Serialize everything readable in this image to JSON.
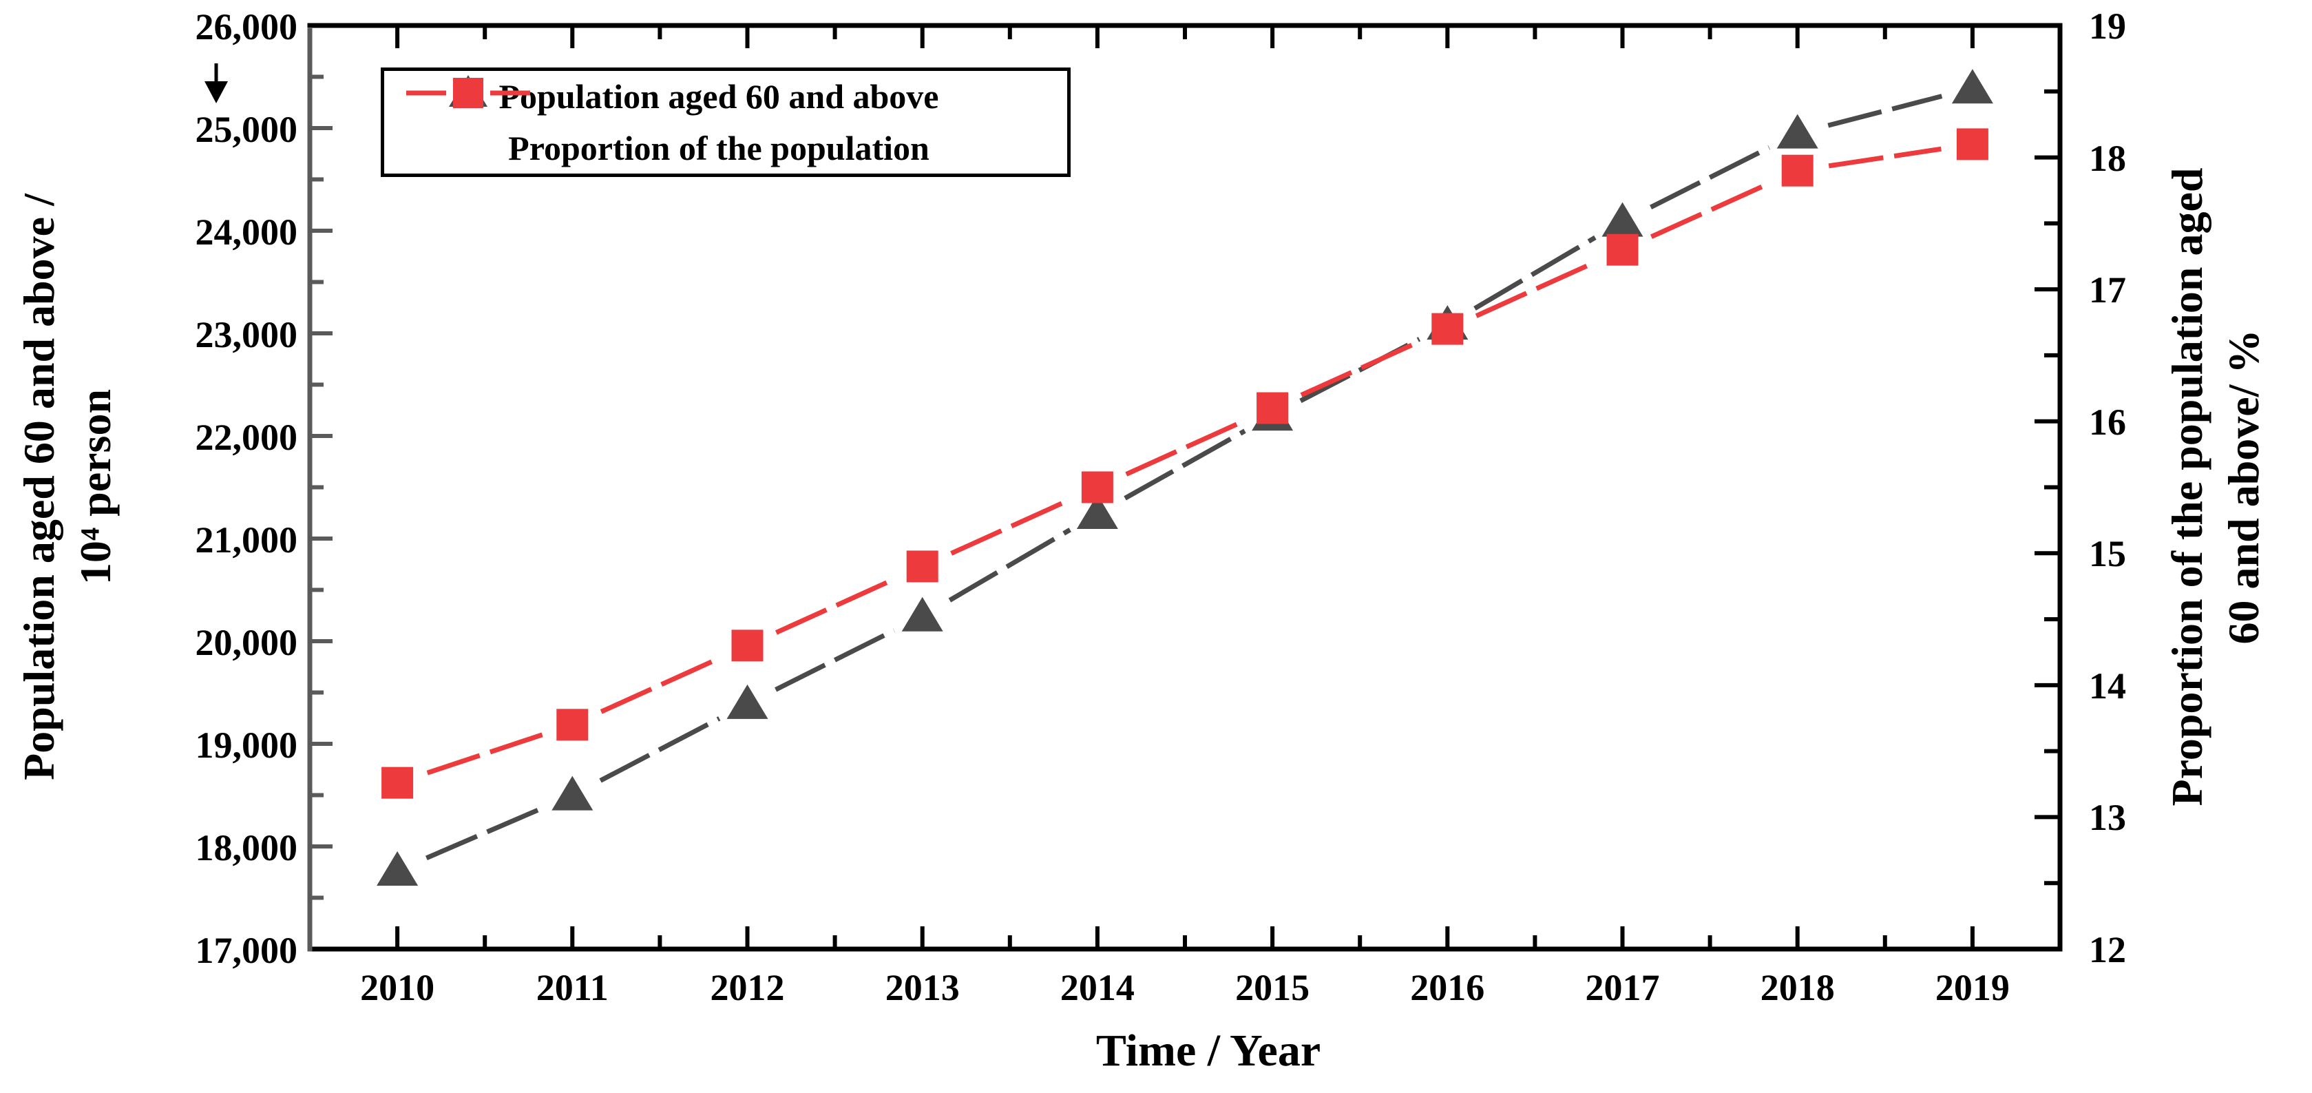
{
  "chart_data": {
    "type": "line",
    "title": "",
    "x": [
      "2010",
      "2011",
      "2012",
      "2013",
      "2014",
      "2015",
      "2016",
      "2017",
      "2018",
      "2019"
    ],
    "xlabel": "Time / Year",
    "series": [
      {
        "name": "Population aged 60 and above",
        "axis": "left",
        "marker": "triangle",
        "color": "#4a4a4a",
        "values": [
          17765,
          18499,
          19390,
          20243,
          21242,
          22200,
          23086,
          24090,
          24949,
          25388
        ]
      },
      {
        "name": "Proportion of the population",
        "axis": "right",
        "marker": "square",
        "color": "#ed3a3c",
        "values": [
          13.26,
          13.7,
          14.3,
          14.9,
          15.5,
          16.1,
          16.7,
          17.3,
          17.9,
          18.1
        ]
      }
    ],
    "left_axis": {
      "label_line1": "Population aged 60 and above /",
      "label_line2": "10⁴ person",
      "min": 17000,
      "max": 26000,
      "major_step": 1000,
      "minor_step": 500,
      "tick_labels": [
        "26,000",
        "25,000",
        "24,000",
        "23,000",
        "22,000",
        "21,000",
        "20,000",
        "19,000",
        "18,000",
        "17,000"
      ],
      "axis_color": "#5a5a5a",
      "text_color": "#000000"
    },
    "right_axis": {
      "label_line1": "Proportion of the population aged",
      "label_line2": "60 and above/ %",
      "min": 12,
      "max": 19,
      "major_step": 1,
      "minor_step": 0.5,
      "tick_labels": [
        "19",
        "18",
        "17",
        "16",
        "15",
        "14",
        "13",
        "12"
      ],
      "axis_color": "#000000",
      "text_color": "#000000"
    },
    "legend": {
      "position": "top-left",
      "border_color": "#000000",
      "entries": [
        "Population aged 60 and above",
        "Proportion of the population"
      ]
    },
    "annotations": [
      {
        "name": "down-arrow",
        "glyph": "↓",
        "near_label": "26,000"
      }
    ],
    "grid": false,
    "frame_color": "#000000",
    "background": "#ffffff"
  }
}
